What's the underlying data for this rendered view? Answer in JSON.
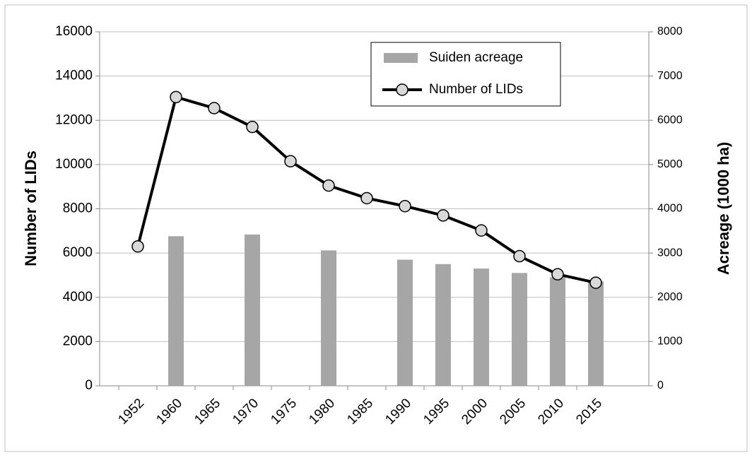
{
  "chart_data": {
    "type": "bar-line",
    "categories": [
      "1952",
      "1960",
      "1965",
      "1970",
      "1975",
      "1980",
      "1985",
      "1990",
      "1995",
      "2000",
      "2005",
      "2010",
      "2015"
    ],
    "series": [
      {
        "name": "Suiden acreage",
        "type": "bar",
        "axis": "y2",
        "color": "#a6a6a6",
        "values": [
          null,
          3380,
          null,
          3420,
          null,
          3060,
          null,
          2850,
          2750,
          2650,
          2550,
          2450,
          2360
        ]
      },
      {
        "name": "Number of LIDs",
        "type": "line",
        "axis": "y",
        "color": "#000000",
        "marker_color": "#d9d9d9",
        "values": [
          6300,
          13050,
          12550,
          11700,
          10150,
          9050,
          8480,
          8120,
          7700,
          7020,
          5860,
          5040,
          4660
        ]
      }
    ],
    "y_label": "Number of LIDs",
    "y2_label": "Acreage (1000 ha)",
    "ylim": [
      0,
      16000
    ],
    "yticks": [
      0,
      2000,
      4000,
      6000,
      8000,
      10000,
      12000,
      14000,
      16000
    ],
    "y2lim": [
      0,
      8000
    ],
    "y2ticks": [
      0,
      1000,
      2000,
      3000,
      4000,
      5000,
      6000,
      7000,
      8000
    ],
    "grid": true,
    "legend": "top-right"
  }
}
